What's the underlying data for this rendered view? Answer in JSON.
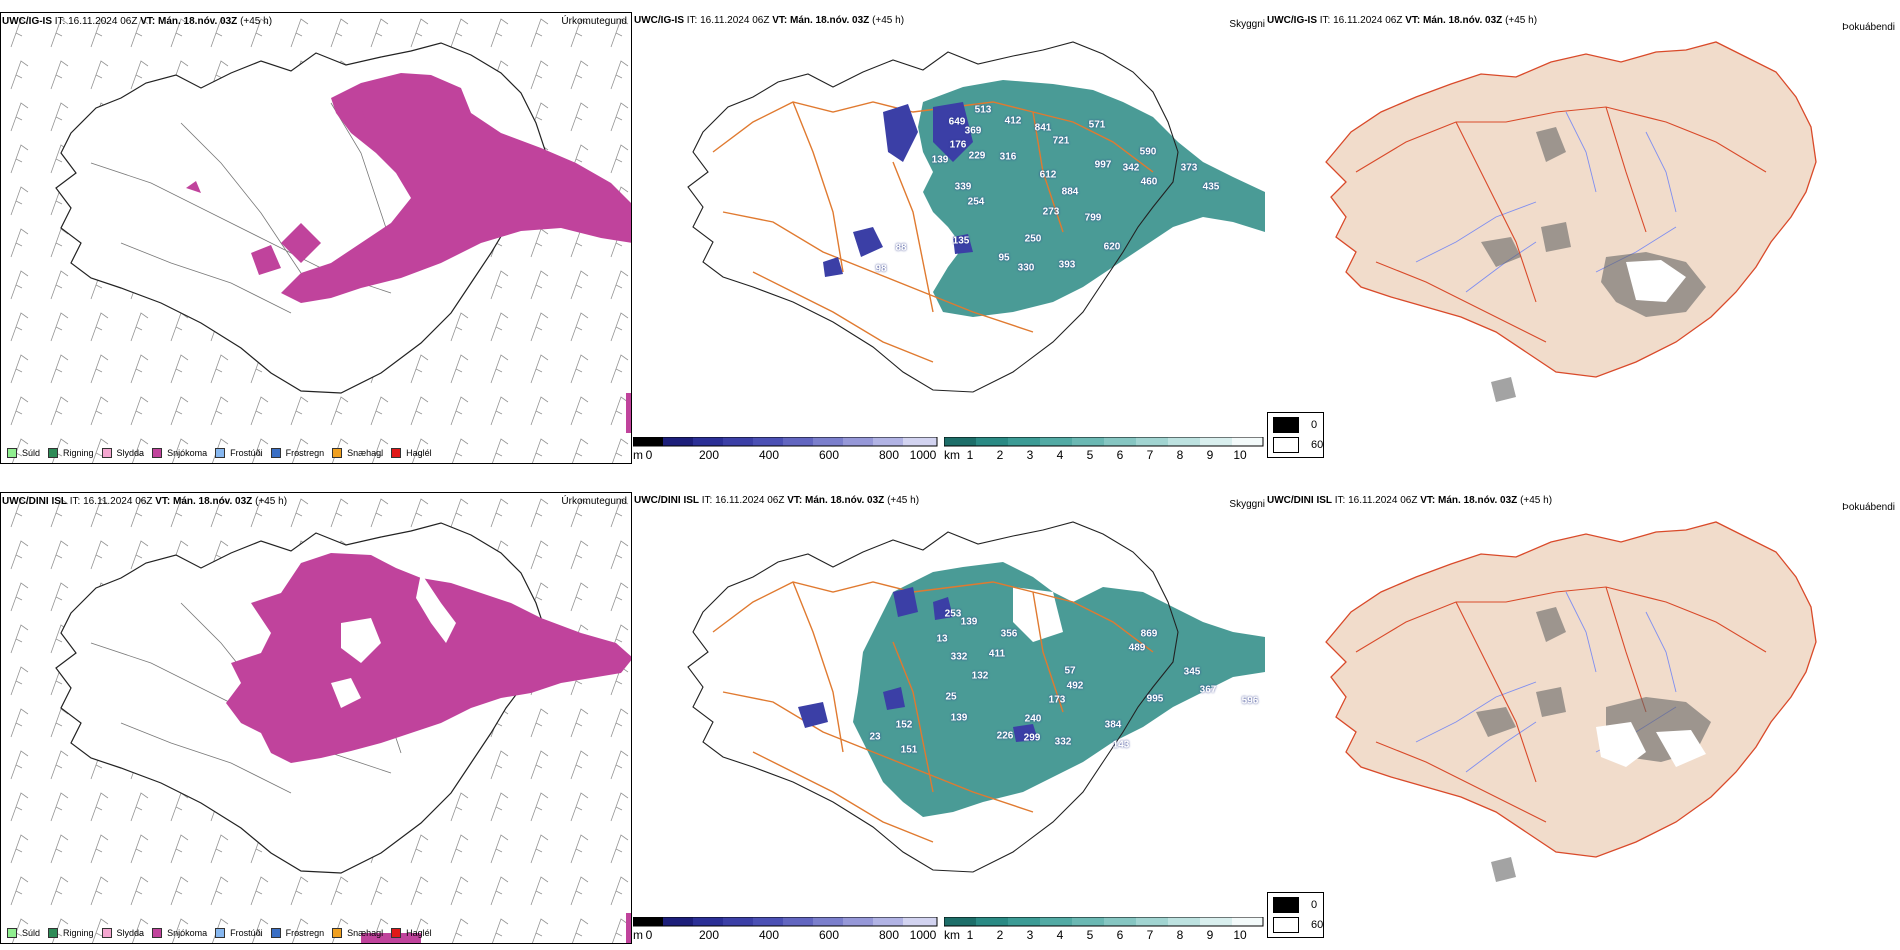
{
  "rows": [
    {
      "model": "UWC/IG-IS",
      "it": "IT: 16.11.2024 06Z",
      "vt": "VT: Mán. 18.nóv. 03Z",
      "lead": "(+45 h)",
      "precip_label": "Úrkomutegund",
      "cloud_label": "Skyggni",
      "fog_label": "Þokuábendi",
      "value_labels": [
        "649",
        "513",
        "412",
        "369",
        "176",
        "841",
        "571",
        "721",
        "229",
        "316",
        "139",
        "997",
        "612",
        "342",
        "590",
        "460",
        "373",
        "435",
        "339",
        "254",
        "884",
        "273",
        "799",
        "135",
        "250",
        "88",
        "620",
        "95",
        "330",
        "393",
        "98"
      ]
    },
    {
      "model": "UWC/DINI ISL",
      "it": "IT: 16.11.2024 06Z",
      "vt": "VT: Mán. 18.nóv. 03Z",
      "lead": "(+45 h)",
      "precip_label": "Úrkomutegund",
      "cloud_label": "Skyggni",
      "fog_label": "Þokuábendi",
      "value_labels": [
        "253",
        "139",
        "356",
        "13",
        "411",
        "869",
        "332",
        "132",
        "489",
        "25",
        "57",
        "492",
        "345",
        "173",
        "995",
        "367",
        "596",
        "240",
        "139",
        "152",
        "226",
        "299",
        "384",
        "332",
        "143",
        "23",
        "151"
      ]
    }
  ],
  "precip_legend": [
    {
      "label": "Súld",
      "color": "#90ee90"
    },
    {
      "label": "Rigning",
      "color": "#2e8b57"
    },
    {
      "label": "Slydda",
      "color": "#f4a6d0"
    },
    {
      "label": "Snjókoma",
      "color": "#c0439c"
    },
    {
      "label": "Frostúði",
      "color": "#87b7ef"
    },
    {
      "label": "Frostregn",
      "color": "#3a6fc4"
    },
    {
      "label": "Snæhagl",
      "color": "#f0a020"
    },
    {
      "label": "Haglél",
      "color": "#e01818"
    }
  ],
  "ceiling_scale": {
    "unit": "m",
    "ticks": [
      "0",
      "200",
      "400",
      "600",
      "800",
      "1000"
    ]
  },
  "visibility_scale": {
    "unit": "km",
    "ticks": [
      "1",
      "2",
      "3",
      "4",
      "5",
      "6",
      "7",
      "8",
      "9",
      "10"
    ]
  },
  "fog_key": {
    "values": [
      "0",
      "60"
    ]
  },
  "colors": {
    "snow": "#c0439c",
    "teal": "#2a8a84",
    "ceiling": "#3b3fa6",
    "land": "#f1dccb",
    "roads": "#e07a30",
    "roads_red": "#d94a2a",
    "rivers": "#7f8ef0"
  }
}
